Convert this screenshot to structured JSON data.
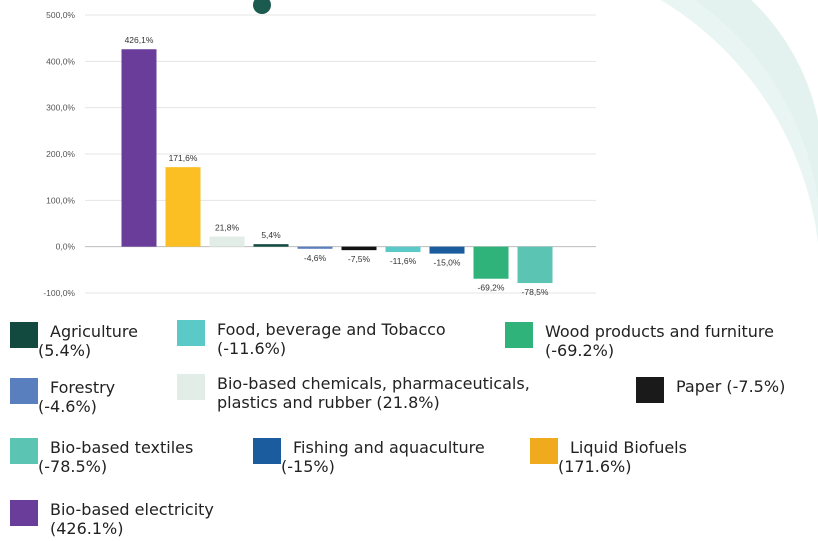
{
  "chart_data": {
    "type": "bar",
    "categories": [
      "Bio-based electricity",
      "Liquid Biofuels",
      "Bio-based chemicals, pharmaceuticals, plastics and rubber",
      "Agriculture",
      "Forestry",
      "Paper",
      "Food, beverage and Tobacco",
      "Fishing and aquaculture",
      "Wood products and furniture",
      "Bio-based textiles"
    ],
    "values": [
      426.1,
      171.6,
      21.8,
      5.4,
      -4.6,
      -7.5,
      -11.6,
      -15.0,
      -69.2,
      -78.5
    ],
    "value_labels": [
      "426,1%",
      "171,6%",
      "21,8%",
      "5,4%",
      "-4,6%",
      "-7,5%",
      "-11,6%",
      "-15,0%",
      "-69,2%",
      "-78,5%"
    ],
    "colors": [
      "#6a3d9a",
      "#fbbf24",
      "#e2ede8",
      "#134a40",
      "#5a7fbf",
      "#111111",
      "#5cc9c9",
      "#1b5c9e",
      "#2fb37a",
      "#5cc4b2"
    ],
    "ylim": [
      -100,
      500
    ],
    "yticks": [
      "-100,0%",
      "0,0%",
      "100,0%",
      "200,0%",
      "300,0%",
      "400,0%",
      "500,0%"
    ],
    "ytick_values": [
      -100,
      0,
      100,
      200,
      300,
      400,
      500
    ],
    "grid": true,
    "title": "",
    "xlabel": "",
    "ylabel": ""
  },
  "legend": [
    {
      "label": "Agriculture",
      "sub": "(5.4%)",
      "color": "#134a40"
    },
    {
      "label": "Food, beverage and Tobacco",
      "sub": "(-11.6%)",
      "color": "#5cc9c9"
    },
    {
      "label": "Wood products and furniture",
      "sub": "(-69.2%)",
      "color": "#2fb37a"
    },
    {
      "label": "Forestry",
      "sub": "(-4.6%)",
      "color": "#5a7fbf"
    },
    {
      "label": "Bio-based chemicals, pharmaceuticals,",
      "sub": "plastics and rubber (21.8%)",
      "color": "#e2ede8"
    },
    {
      "label": "Paper (-7.5%)",
      "sub": "",
      "color": "#1a1a1a"
    },
    {
      "label": "Bio-based textiles",
      "sub": "(-78.5%)",
      "color": "#5cc4b2"
    },
    {
      "label": "Fishing and aquaculture",
      "sub": "(-15%)",
      "color": "#1b5c9e"
    },
    {
      "label": "Liquid Biofuels",
      "sub": "(171.6%)",
      "color": "#f0aa1e"
    },
    {
      "label": "Bio-based electricity",
      "sub": "(426.1%)",
      "color": "#6a3d9a"
    }
  ]
}
